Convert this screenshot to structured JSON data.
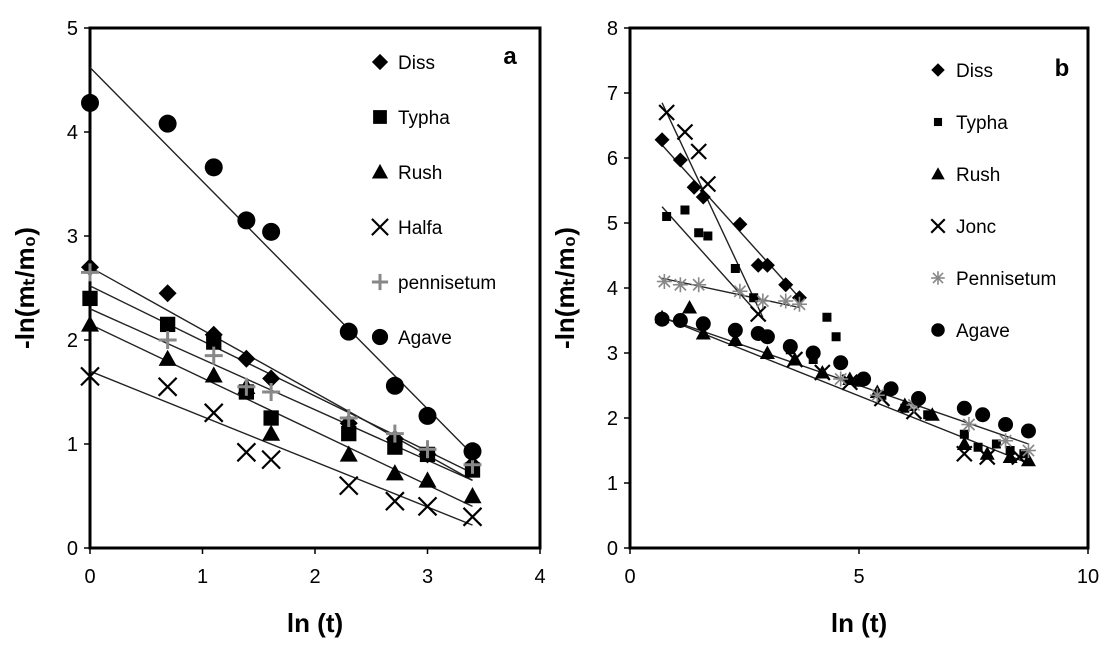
{
  "chart_data": [
    {
      "type": "scatter",
      "panel_label": "a",
      "xlabel": "ln (t)",
      "ylabel": "-ln(mₜ/m₀)",
      "xlim": [
        0,
        4
      ],
      "ylim": [
        0,
        5
      ],
      "xticks": [
        0,
        1,
        2,
        3,
        4
      ],
      "yticks": [
        0,
        1,
        2,
        3,
        4,
        5
      ],
      "grid": false,
      "legend_position": "right",
      "series": [
        {
          "name": "Diss",
          "marker": "diamond",
          "x": [
            0,
            0.69,
            1.1,
            1.39,
            1.61,
            2.3,
            2.71,
            3.0,
            3.4
          ],
          "y": [
            2.7,
            2.45,
            2.05,
            1.82,
            1.63,
            1.2,
            1.05,
            0.9,
            0.8
          ],
          "fit": [
            [
              0,
              2.7
            ],
            [
              3.4,
              0.65
            ]
          ]
        },
        {
          "name": "Typha",
          "marker": "square",
          "x": [
            0,
            0.69,
            1.1,
            1.39,
            1.61,
            2.3,
            2.71,
            3.0,
            3.4
          ],
          "y": [
            2.4,
            2.15,
            1.98,
            1.5,
            1.25,
            1.1,
            0.97,
            0.9,
            0.75
          ],
          "fit": [
            [
              0,
              2.3
            ],
            [
              3.4,
              0.65
            ]
          ]
        },
        {
          "name": "Rush",
          "marker": "triangle",
          "x": [
            0,
            0.69,
            1.1,
            1.39,
            1.61,
            2.3,
            2.71,
            3.0,
            3.4
          ],
          "y": [
            2.15,
            1.82,
            1.66,
            1.55,
            1.1,
            0.9,
            0.72,
            0.65,
            0.5
          ],
          "fit": [
            [
              0,
              2.15
            ],
            [
              3.4,
              0.4
            ]
          ]
        },
        {
          "name": "Halfa",
          "marker": "x",
          "x": [
            0,
            0.69,
            1.1,
            1.39,
            1.61,
            2.3,
            2.71,
            3.0,
            3.4
          ],
          "y": [
            1.65,
            1.55,
            1.3,
            0.92,
            0.85,
            0.6,
            0.45,
            0.4,
            0.3
          ],
          "fit": [
            [
              0,
              1.7
            ],
            [
              3.4,
              0.22
            ]
          ]
        },
        {
          "name": "pennisetum",
          "marker": "plus",
          "x": [
            0,
            0.69,
            1.1,
            1.39,
            1.61,
            2.3,
            2.71,
            3.0,
            3.4
          ],
          "y": [
            2.65,
            2.0,
            1.85,
            1.55,
            1.5,
            1.25,
            1.1,
            0.95,
            0.8
          ],
          "fit": [
            [
              0,
              2.52
            ],
            [
              3.4,
              0.72
            ]
          ]
        },
        {
          "name": "Agave",
          "marker": "circle",
          "x": [
            0,
            0.69,
            1.1,
            1.39,
            1.61,
            2.3,
            2.71,
            3.0,
            3.4
          ],
          "y": [
            4.28,
            4.08,
            3.66,
            3.15,
            3.04,
            2.08,
            1.56,
            1.27,
            0.93
          ],
          "fit": [
            [
              0,
              4.62
            ],
            [
              3.4,
              0.9
            ]
          ]
        }
      ]
    },
    {
      "type": "scatter",
      "panel_label": "b",
      "xlabel": "ln (t)",
      "ylabel": "-ln(mₜ/m₀)",
      "xlim": [
        0,
        10
      ],
      "ylim": [
        0,
        8
      ],
      "xticks": [
        0,
        5,
        10
      ],
      "yticks": [
        0,
        1,
        2,
        3,
        4,
        5,
        6,
        7,
        8
      ],
      "grid": false,
      "legend_position": "right",
      "series": [
        {
          "name": "Diss",
          "marker": "diamond",
          "x": [
            0.7,
            1.1,
            1.4,
            1.6,
            2.4,
            2.8,
            3.0,
            3.4,
            3.7
          ],
          "y": [
            6.28,
            5.97,
            5.55,
            5.4,
            4.98,
            4.35,
            4.35,
            4.05,
            3.85
          ],
          "fit": [
            [
              0.7,
              6.2
            ],
            [
              3.7,
              3.85
            ]
          ]
        },
        {
          "name": "Typha",
          "marker": "square_small",
          "x": [
            0.8,
            1.2,
            1.5,
            1.7,
            2.3,
            2.7,
            3.0,
            3.5,
            4.0,
            4.3,
            4.5,
            5.0,
            5.5,
            6.0,
            6.5,
            7.3,
            7.6,
            8.0,
            8.3,
            8.6
          ],
          "y": [
            5.1,
            5.2,
            4.85,
            4.8,
            4.3,
            3.85,
            3.25,
            3.05,
            2.9,
            3.55,
            3.25,
            2.55,
            2.35,
            2.15,
            2.05,
            1.75,
            1.55,
            1.6,
            1.5,
            1.45
          ],
          "fit": [
            [
              0.7,
              5.25
            ],
            [
              2.8,
              3.6
            ]
          ]
        },
        {
          "name": "Rush",
          "marker": "triangle",
          "x": [
            0.7,
            1.3,
            1.6,
            2.3,
            3.0,
            3.6,
            4.2,
            4.8,
            5.4,
            6.0,
            6.6,
            7.3,
            7.8,
            8.3,
            8.7
          ],
          "y": [
            3.55,
            3.7,
            3.3,
            3.2,
            3.0,
            2.9,
            2.7,
            2.6,
            2.4,
            2.2,
            2.05,
            1.6,
            1.45,
            1.4,
            1.35
          ],
          "fit": [
            [
              0.7,
              3.55
            ],
            [
              8.7,
              1.3
            ]
          ]
        },
        {
          "name": "Jonc",
          "marker": "x",
          "x": [
            0.8,
            1.2,
            1.5,
            1.7,
            2.8,
            3.6,
            4.2,
            4.8,
            5.5,
            6.2,
            7.3,
            7.8,
            8.5
          ],
          "y": [
            6.7,
            6.4,
            6.1,
            5.6,
            3.6,
            2.9,
            2.7,
            2.55,
            2.3,
            2.1,
            1.45,
            1.4,
            1.4
          ],
          "fit": [
            [
              0.7,
              6.85
            ],
            [
              2.9,
              3.55
            ]
          ]
        },
        {
          "name": "Pennisetum",
          "marker": "asterisk",
          "x": [
            0.75,
            1.1,
            1.5,
            2.4,
            2.9,
            3.4,
            3.7,
            4.6,
            5.4,
            6.2,
            7.4,
            8.2,
            8.7
          ],
          "y": [
            4.1,
            4.05,
            4.05,
            3.95,
            3.8,
            3.8,
            3.75,
            2.6,
            2.35,
            2.2,
            1.9,
            1.65,
            1.5
          ],
          "fit": [
            [
              0.7,
              4.15
            ],
            [
              3.7,
              3.7
            ]
          ]
        },
        {
          "name": "Agave",
          "marker": "circle",
          "x": [
            0.7,
            1.1,
            1.6,
            2.3,
            2.8,
            3.0,
            3.5,
            4.0,
            4.6,
            5.1,
            5.7,
            6.3,
            7.3,
            7.7,
            8.2,
            8.7
          ],
          "y": [
            3.52,
            3.5,
            3.45,
            3.35,
            3.3,
            3.25,
            3.1,
            3.0,
            2.85,
            2.6,
            2.45,
            2.3,
            2.15,
            2.05,
            1.9,
            1.8
          ],
          "fit": [
            [
              0.7,
              3.55
            ],
            [
              8.7,
              1.6
            ]
          ]
        }
      ]
    }
  ]
}
